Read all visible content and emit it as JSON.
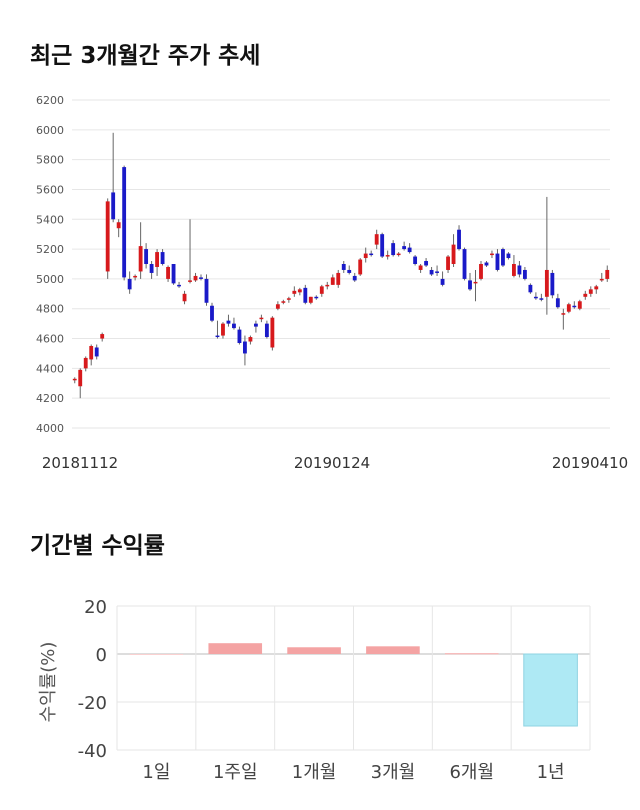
{
  "section1": {
    "title": "최근 3개월간 주가 추세"
  },
  "section2": {
    "title": "기간별 수익률"
  },
  "colors": {
    "up": "#d7191c",
    "down": "#1a1ac8",
    "wick": "#666666",
    "grid": "#e6e6e6",
    "positive_bar": "#f4a3a3",
    "negative_bar": "#aee9f4"
  },
  "chart_data": [
    {
      "type": "candlestick",
      "title": "최근 3개월간 주가 추세",
      "ylim": [
        4000,
        6200
      ],
      "yticks": [
        "6200",
        "6000",
        "5800",
        "5600",
        "5400",
        "5200",
        "5000",
        "4800",
        "4600",
        "4400",
        "4200",
        "4000"
      ],
      "x_tick_labels": [
        "20181112",
        "20190124",
        "20190410"
      ],
      "grid": true,
      "ohlc": [
        [
          4320,
          4340,
          4300,
          4330
        ],
        [
          4280,
          4400,
          4200,
          4390
        ],
        [
          4400,
          4480,
          4380,
          4470
        ],
        [
          4460,
          4560,
          4420,
          4550
        ],
        [
          4540,
          4560,
          4460,
          4480
        ],
        [
          4600,
          4640,
          4580,
          4630
        ],
        [
          5050,
          5540,
          5000,
          5520
        ],
        [
          5580,
          5980,
          5380,
          5400
        ],
        [
          5340,
          5400,
          5280,
          5380
        ],
        [
          5750,
          5760,
          4990,
          5010
        ],
        [
          5000,
          5050,
          4900,
          4930
        ],
        [
          5010,
          5030,
          4990,
          5020
        ],
        [
          5050,
          5380,
          5000,
          5220
        ],
        [
          5200,
          5240,
          5070,
          5100
        ],
        [
          5100,
          5120,
          5000,
          5040
        ],
        [
          5080,
          5200,
          5020,
          5180
        ],
        [
          5180,
          5200,
          5090,
          5100
        ],
        [
          5000,
          5090,
          4980,
          5080
        ],
        [
          5100,
          5100,
          4960,
          4970
        ],
        [
          4960,
          4980,
          4940,
          4950
        ],
        [
          4850,
          4920,
          4830,
          4900
        ],
        [
          4990,
          5400,
          4970,
          4990
        ],
        [
          4990,
          5040,
          4980,
          5020
        ],
        [
          5010,
          5030,
          4990,
          5000
        ],
        [
          5000,
          5030,
          4820,
          4840
        ],
        [
          4820,
          4840,
          4710,
          4720
        ],
        [
          4620,
          4720,
          4600,
          4610
        ],
        [
          4620,
          4710,
          4600,
          4700
        ],
        [
          4720,
          4760,
          4680,
          4700
        ],
        [
          4700,
          4740,
          4660,
          4670
        ],
        [
          4660,
          4680,
          4560,
          4570
        ],
        [
          4580,
          4620,
          4420,
          4500
        ],
        [
          4580,
          4620,
          4560,
          4610
        ],
        [
          4700,
          4720,
          4640,
          4680
        ],
        [
          4730,
          4760,
          4710,
          4740
        ],
        [
          4700,
          4720,
          4600,
          4610
        ],
        [
          4540,
          4750,
          4520,
          4740
        ],
        [
          4800,
          4850,
          4790,
          4830
        ],
        [
          4840,
          4860,
          4830,
          4850
        ],
        [
          4860,
          4880,
          4840,
          4870
        ],
        [
          4900,
          4950,
          4880,
          4920
        ],
        [
          4910,
          4940,
          4890,
          4930
        ],
        [
          4940,
          4960,
          4830,
          4840
        ],
        [
          4840,
          4880,
          4830,
          4880
        ],
        [
          4880,
          4890,
          4860,
          4870
        ],
        [
          4900,
          4960,
          4880,
          4950
        ],
        [
          4950,
          4980,
          4930,
          4960
        ],
        [
          4960,
          5030,
          4960,
          5010
        ],
        [
          4960,
          5060,
          4940,
          5040
        ],
        [
          5100,
          5120,
          5040,
          5060
        ],
        [
          5060,
          5090,
          5030,
          5040
        ],
        [
          5020,
          5040,
          4980,
          4990
        ],
        [
          5030,
          5140,
          5020,
          5130
        ],
        [
          5140,
          5210,
          5110,
          5170
        ],
        [
          5170,
          5190,
          5150,
          5160
        ],
        [
          5230,
          5330,
          5200,
          5300
        ],
        [
          5300,
          5310,
          5140,
          5150
        ],
        [
          5150,
          5190,
          5130,
          5160
        ],
        [
          5240,
          5260,
          5150,
          5160
        ],
        [
          5160,
          5180,
          5150,
          5170
        ],
        [
          5220,
          5250,
          5190,
          5200
        ],
        [
          5210,
          5240,
          5170,
          5180
        ],
        [
          5150,
          5160,
          5090,
          5100
        ],
        [
          5060,
          5100,
          5040,
          5090
        ],
        [
          5120,
          5140,
          5080,
          5090
        ],
        [
          5060,
          5080,
          5020,
          5030
        ],
        [
          5050,
          5090,
          5020,
          5040
        ],
        [
          5000,
          5050,
          4950,
          4960
        ],
        [
          5060,
          5160,
          5040,
          5150
        ],
        [
          5100,
          5300,
          5080,
          5230
        ],
        [
          5330,
          5360,
          5190,
          5200
        ],
        [
          5200,
          5210,
          4990,
          5000
        ],
        [
          4990,
          5040,
          4920,
          4930
        ],
        [
          4970,
          5060,
          4850,
          4980
        ],
        [
          5000,
          5120,
          4990,
          5100
        ],
        [
          5110,
          5120,
          5080,
          5090
        ],
        [
          5160,
          5190,
          5140,
          5170
        ],
        [
          5170,
          5200,
          5050,
          5060
        ],
        [
          5200,
          5210,
          5080,
          5090
        ],
        [
          5170,
          5180,
          5130,
          5140
        ],
        [
          5020,
          5160,
          5010,
          5100
        ],
        [
          5090,
          5120,
          5010,
          5030
        ],
        [
          5060,
          5080,
          4990,
          5000
        ],
        [
          4960,
          4970,
          4900,
          4910
        ],
        [
          4880,
          4910,
          4860,
          4870
        ],
        [
          4870,
          4900,
          4850,
          4860
        ],
        [
          4880,
          5550,
          4760,
          5060
        ],
        [
          5040,
          5060,
          4870,
          4890
        ],
        [
          4870,
          4900,
          4800,
          4810
        ],
        [
          4760,
          4800,
          4660,
          4770
        ],
        [
          4780,
          4840,
          4770,
          4830
        ],
        [
          4820,
          4850,
          4800,
          4810
        ],
        [
          4800,
          4860,
          4790,
          4850
        ],
        [
          4880,
          4920,
          4860,
          4900
        ],
        [
          4900,
          4950,
          4880,
          4930
        ],
        [
          4930,
          4960,
          4900,
          4950
        ],
        [
          4990,
          5040,
          4980,
          5000
        ],
        [
          5000,
          5090,
          4980,
          5060
        ]
      ]
    },
    {
      "type": "bar",
      "title": "기간별 수익률",
      "categories": [
        "1일",
        "1주일",
        "1개월",
        "3개월",
        "6개월",
        "1년"
      ],
      "values": [
        0,
        4.5,
        2.8,
        3.2,
        0.3,
        -30
      ],
      "ylabel": "수익률(%)",
      "ylim": [
        -40,
        20
      ],
      "yticks": [
        "20",
        "0",
        "-20",
        "-40"
      ],
      "grid": true
    }
  ]
}
